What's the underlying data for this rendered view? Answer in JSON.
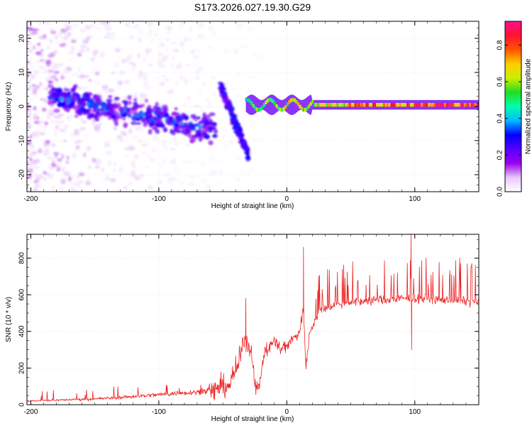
{
  "title": "S173.2026.027.19.30.G29",
  "chart_data": [
    {
      "type": "heatmap",
      "name": "spectrogram",
      "xlabel": "Height of straight line (km)",
      "ylabel": "Frequency (Hz)",
      "xlim": [
        -203,
        150
      ],
      "ylim": [
        -25,
        25
      ],
      "xticks": [
        -200,
        -100,
        0,
        100
      ],
      "yticks": [
        -20,
        -10,
        0,
        10,
        20
      ],
      "colorbar": {
        "label": "Normalized spectral amplitude",
        "range": [
          0,
          0.93
        ],
        "ticks": [
          0.0,
          0.2,
          0.4,
          0.6,
          0.8
        ],
        "colormap": [
          "#ffffff",
          "#e8c8f8",
          "#9900ee",
          "#5500ff",
          "#0000ff",
          "#00bbff",
          "#00ffaa",
          "#22dd22",
          "#ccee00",
          "#ffcc00",
          "#ff5500",
          "#ff1133",
          "#ff1188"
        ]
      },
      "features": [
        {
          "segment": "scattered noise",
          "x_range": [
            -203,
            -20
          ],
          "freq_range": [
            -25,
            25
          ],
          "amplitude": 0.05
        },
        {
          "segment": "descending trace",
          "x_range": [
            -185,
            -55
          ],
          "freq_start": 3,
          "freq_end": -7,
          "amplitude": 0.2
        },
        {
          "segment": "narrow trace",
          "x_range": [
            -32,
            150
          ],
          "freq": 0.5,
          "amplitude_start": 0.5,
          "amplitude_end": 0.88
        }
      ]
    },
    {
      "type": "line",
      "name": "snr",
      "xlabel": "Height of straight line (km)",
      "ylabel": "SNR (10 * v/v)",
      "xlim": [
        -203,
        150
      ],
      "ylim": [
        0,
        930
      ],
      "xticks": [
        -200,
        -100,
        0,
        100
      ],
      "yticks": [
        0,
        200,
        400,
        600,
        800
      ],
      "color": "#ee2222",
      "series": [
        {
          "name": "SNR",
          "x": [
            -203,
            -180,
            -160,
            -140,
            -120,
            -100,
            -80,
            -60,
            -45,
            -38,
            -33,
            -28,
            -25,
            -22,
            -18,
            -12,
            -8,
            -5,
            0,
            5,
            10,
            13,
            15,
            18,
            22,
            27,
            35,
            50,
            70,
            90,
            110,
            130,
            150
          ],
          "y": [
            20,
            25,
            30,
            35,
            45,
            55,
            65,
            75,
            110,
            220,
            360,
            300,
            150,
            60,
            280,
            330,
            350,
            300,
            330,
            360,
            400,
            520,
            200,
            400,
            460,
            520,
            540,
            560,
            570,
            580,
            580,
            570,
            560
          ]
        }
      ],
      "spikes": [
        {
          "x": 13,
          "y": 860
        },
        {
          "x": 97,
          "y": 940
        },
        {
          "x": 97.5,
          "y": 300
        },
        {
          "x": -32,
          "y": 580
        }
      ]
    }
  ]
}
